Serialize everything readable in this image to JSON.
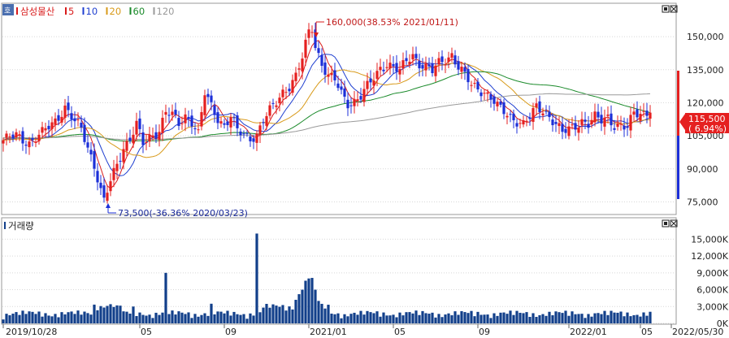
{
  "header": {
    "stock_name": "삼성물산",
    "ma_legend": [
      {
        "label": "5",
        "color": "#d91c1c"
      },
      {
        "label": "10",
        "color": "#1f3fd0"
      },
      {
        "label": "20",
        "color": "#d89a1a"
      },
      {
        "label": "60",
        "color": "#1a8a2a"
      },
      {
        "label": "120",
        "color": "#9a9a9a"
      }
    ],
    "volume_title": "거래량"
  },
  "price_tag": {
    "price": "115,500",
    "change": "( 6.94%)"
  },
  "annotations": {
    "high": "160,000(38.53% 2021/01/11)",
    "low": "73,500(-36.36% 2020/03/23)"
  },
  "chart_data": [
    {
      "type": "candlestick",
      "title": "",
      "ylim": [
        70000,
        160000
      ],
      "y_ticks": [
        "150,000",
        "135,000",
        "120,000",
        "105,000",
        "90,000",
        "75,000"
      ],
      "y_tick_values": [
        150000,
        135000,
        120000,
        105000,
        90000,
        75000
      ],
      "colors": {
        "up": "#e52020",
        "down": "#1c2fd8",
        "ma5": "#d91c1c",
        "ma10": "#1f3fd0",
        "ma20": "#d89a1a",
        "ma60": "#1a8a2a",
        "ma120": "#9a9a9a"
      },
      "close_anchors": [
        [
          0,
          103000
        ],
        [
          4,
          105000
        ],
        [
          8,
          102000
        ],
        [
          12,
          106000
        ],
        [
          16,
          112000
        ],
        [
          19,
          118000
        ],
        [
          22,
          111000
        ],
        [
          24,
          108000
        ],
        [
          26,
          100000
        ],
        [
          28,
          92000
        ],
        [
          30,
          80000
        ],
        [
          31,
          75000
        ],
        [
          33,
          84000
        ],
        [
          35,
          92000
        ],
        [
          37,
          100000
        ],
        [
          39,
          104000
        ],
        [
          41,
          110000
        ],
        [
          43,
          101000
        ],
        [
          45,
          104000
        ],
        [
          48,
          108000
        ],
        [
          50,
          116000
        ],
        [
          52,
          114000
        ],
        [
          54,
          110000
        ],
        [
          56,
          114000
        ],
        [
          58,
          112000
        ],
        [
          60,
          106000
        ],
        [
          62,
          124000
        ],
        [
          64,
          118000
        ],
        [
          66,
          113000
        ],
        [
          68,
          110000
        ],
        [
          70,
          114000
        ],
        [
          72,
          107000
        ],
        [
          74,
          105000
        ],
        [
          76,
          104000
        ],
        [
          78,
          106000
        ],
        [
          80,
          112000
        ],
        [
          82,
          116000
        ],
        [
          84,
          120000
        ],
        [
          86,
          125000
        ],
        [
          88,
          128000
        ],
        [
          90,
          132000
        ],
        [
          92,
          140000
        ],
        [
          94,
          152000
        ],
        [
          95,
          154000
        ],
        [
          96,
          146000
        ],
        [
          98,
          138000
        ],
        [
          100,
          132000
        ],
        [
          102,
          130000
        ],
        [
          104,
          124000
        ],
        [
          106,
          120000
        ],
        [
          108,
          121000
        ],
        [
          110,
          123000
        ],
        [
          112,
          127000
        ],
        [
          114,
          131000
        ],
        [
          116,
          136000
        ],
        [
          118,
          138000
        ],
        [
          120,
          136000
        ],
        [
          122,
          134000
        ],
        [
          124,
          139000
        ],
        [
          126,
          142000
        ],
        [
          128,
          138000
        ],
        [
          130,
          136000
        ],
        [
          132,
          134000
        ],
        [
          134,
          138000
        ],
        [
          136,
          140000
        ],
        [
          138,
          142000
        ],
        [
          140,
          136000
        ],
        [
          142,
          132000
        ],
        [
          144,
          128000
        ],
        [
          146,
          127000
        ],
        [
          148,
          125000
        ],
        [
          150,
          122000
        ],
        [
          152,
          118000
        ],
        [
          154,
          116000
        ],
        [
          156,
          114000
        ],
        [
          158,
          112000
        ],
        [
          160,
          110000
        ],
        [
          162,
          113000
        ],
        [
          164,
          118000
        ],
        [
          166,
          117000
        ],
        [
          168,
          114000
        ],
        [
          170,
          110000
        ],
        [
          172,
          106000
        ],
        [
          174,
          108000
        ],
        [
          176,
          110000
        ],
        [
          178,
          112000
        ],
        [
          180,
          110000
        ],
        [
          182,
          113000
        ],
        [
          184,
          112000
        ],
        [
          186,
          114000
        ],
        [
          188,
          110000
        ],
        [
          190,
          109000
        ],
        [
          192,
          108000
        ],
        [
          194,
          115500
        ]
      ]
    },
    {
      "type": "bar",
      "title": "",
      "ylim": [
        0,
        16500
      ],
      "y_ticks": [
        "15,000K",
        "12,000K",
        "9,000K",
        "6,000K",
        "3,000K",
        "0K"
      ],
      "y_tick_values": [
        15000,
        12000,
        9000,
        6000,
        3000,
        0
      ],
      "color": "#123f8a",
      "spikes": [
        [
          50,
          9000
        ],
        [
          78,
          16000
        ],
        [
          93,
          7600
        ],
        [
          94,
          8000
        ],
        [
          95,
          8100
        ],
        [
          92,
          6000
        ],
        [
          91,
          5200
        ],
        [
          90,
          4200
        ],
        [
          96,
          6000
        ],
        [
          97,
          4000
        ],
        [
          64,
          3500
        ],
        [
          40,
          3000
        ],
        [
          35,
          3200
        ]
      ],
      "x_labels": [
        "2019/10/28",
        "05",
        "09",
        "2021/01",
        "05",
        "09",
        "2022/01",
        "05",
        "2022/05/30"
      ],
      "x_label_index": [
        0,
        42,
        68,
        94,
        120,
        146,
        174,
        196,
        200
      ]
    }
  ]
}
